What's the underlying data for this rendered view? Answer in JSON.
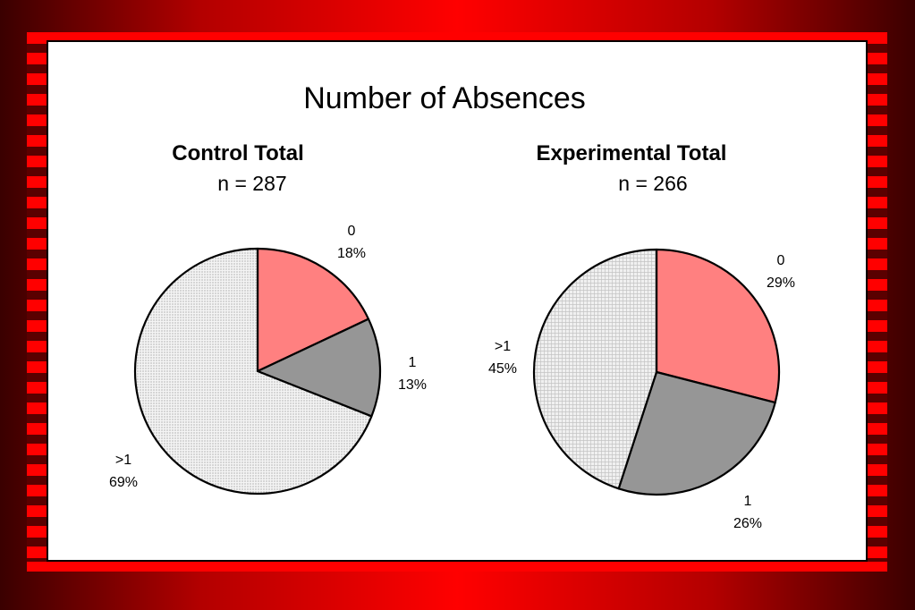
{
  "chart_data": {
    "type": "pie",
    "title": "Number of Absences",
    "charts": [
      {
        "id": "control",
        "subtitle": "Control Total",
        "n_label": "n = 287",
        "slices": [
          {
            "label": "0",
            "percent_label": "18%",
            "value": 18,
            "color": "#ff8080",
            "pattern": "none"
          },
          {
            "label": "1",
            "percent_label": "13%",
            "value": 13,
            "color": "#969696",
            "pattern": "none"
          },
          {
            "label": ">1",
            "percent_label": "69%",
            "value": 69,
            "color": "#eeeeee",
            "pattern": "dots"
          }
        ]
      },
      {
        "id": "experimental",
        "subtitle": "Experimental Total",
        "n_label": "n = 266",
        "slices": [
          {
            "label": "0",
            "percent_label": "29%",
            "value": 29,
            "color": "#ff8080",
            "pattern": "none"
          },
          {
            "label": "1",
            "percent_label": "26%",
            "value": 26,
            "color": "#969696",
            "pattern": "none"
          },
          {
            "label": ">1",
            "percent_label": "45%",
            "value": 45,
            "color": "#eeeeee",
            "pattern": "grid"
          }
        ]
      }
    ]
  }
}
